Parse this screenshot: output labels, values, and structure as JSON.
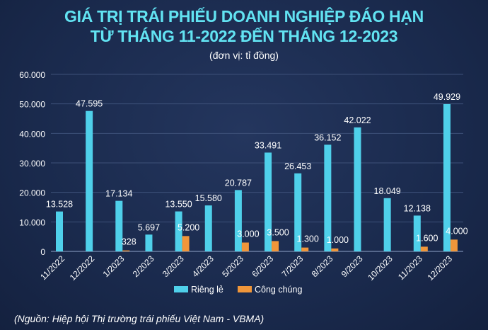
{
  "chart_data": {
    "type": "bar",
    "title": "GIÁ TRỊ TRÁI PHIẾU DOANH NGHIỆP ĐÁO HẠN",
    "title_line2": "TỪ THÁNG 11-2022 ĐẾN THÁNG 12-2023",
    "subtitle": "(đơn vị: tỉ đồng)",
    "source": "(Nguồn: Hiệp hội Thị trường trái phiếu Việt Nam - VBMA)",
    "categories": [
      "11/2022",
      "12/2022",
      "1/2023",
      "2/2023",
      "3/2023",
      "4/2023",
      "5/2023",
      "6/2023",
      "7/2023",
      "8/2023",
      "9/2023",
      "10/2023",
      "11/2023",
      "12/2023"
    ],
    "series": [
      {
        "name": "Riêng lẻ",
        "color": "#4fd0ea",
        "values": [
          13528,
          47595,
          17134,
          5697,
          13550,
          15580,
          20787,
          33491,
          26453,
          36152,
          42022,
          18049,
          12138,
          49929
        ],
        "labels": [
          "13.528",
          "47.595",
          "17.134",
          "5.697",
          "13.550",
          "15.580",
          "20.787",
          "33.491",
          "26.453",
          "36.152",
          "42.022",
          "18.049",
          "12.138",
          "49.929"
        ]
      },
      {
        "name": "Công chúng",
        "color": "#f0963a",
        "values": [
          null,
          null,
          328,
          null,
          5200,
          null,
          3000,
          3500,
          1300,
          1000,
          null,
          null,
          1600,
          4000
        ],
        "labels": [
          null,
          null,
          "328",
          null,
          "5.200",
          null,
          "3.000",
          "3.500",
          "1.300",
          "1.000",
          null,
          null,
          "1.600",
          "4.000"
        ]
      }
    ],
    "ylim": [
      0,
      60000
    ],
    "yticks": [
      0,
      10000,
      20000,
      30000,
      40000,
      50000,
      60000
    ],
    "ytick_labels": [
      "0",
      "10.000",
      "20.000",
      "30.000",
      "40.000",
      "50.000",
      "60.000"
    ],
    "grid": true,
    "legend_position": "bottom"
  }
}
